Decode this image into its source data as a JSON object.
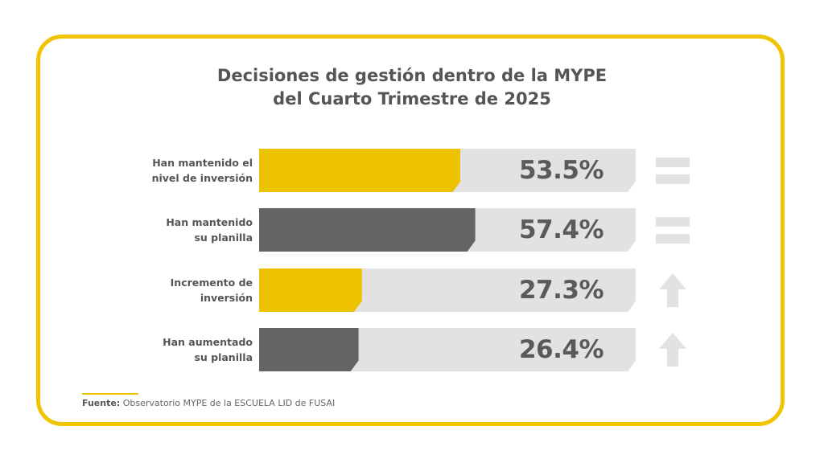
{
  "chart_data": {
    "type": "bar",
    "orientation": "horizontal",
    "title": [
      "Decisiones de gestión dentro de la MYPE",
      "del Cuarto Trimestre de 2025"
    ],
    "xlim": [
      0,
      100
    ],
    "categories": [
      [
        "Han mantenido el",
        "nivel de inversión"
      ],
      [
        "Han mantenido",
        "su planilla"
      ],
      [
        "Incremento de",
        "inversión"
      ],
      [
        "Han aumentado",
        "su planilla"
      ]
    ],
    "values": [
      53.5,
      57.4,
      27.3,
      26.4
    ],
    "value_labels": [
      "53.5%",
      "57.4%",
      "27.3%",
      "26.4%"
    ],
    "bar_colors": [
      "#edc200",
      "#646464",
      "#edc200",
      "#646464"
    ],
    "track_color": "#e2e2e2",
    "icons": [
      "equals-icon",
      "equals-icon",
      "arrow-up-icon",
      "arrow-up-icon"
    ]
  },
  "footer": {
    "source_label": "Fuente:",
    "source_text": "Observatorio MYPE de la ESCUELA LID de FUSAI"
  },
  "colors": {
    "accent": "#f0c400",
    "text": "#555555"
  }
}
